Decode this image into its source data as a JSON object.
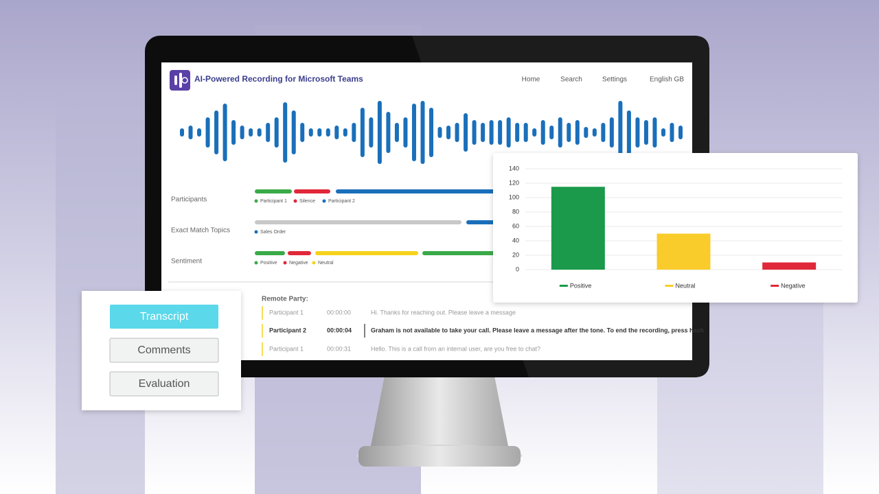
{
  "header": {
    "title": "AI-Powered Recording for Microsoft Teams",
    "nav": [
      "Home",
      "Search",
      "Settings",
      "English GB"
    ]
  },
  "timelines": [
    {
      "label": "Participants",
      "legend": [
        "Participant 1",
        "Silence",
        "Participant 2"
      ]
    },
    {
      "label": "Exact Match Topics",
      "legend": [
        "Sales Order"
      ]
    },
    {
      "label": "Sentiment",
      "legend": [
        "Positive",
        "Negative",
        "Neutral"
      ]
    }
  ],
  "transcript": {
    "heading": "Remote Party:",
    "rows": [
      {
        "speaker": "Participant 1",
        "time": "00:00:00",
        "text": "Hi. Thanks for reaching out. Please leave a message"
      },
      {
        "speaker": "Participant 2",
        "time": "00:00:04",
        "text": "Graham is not available to take your call. Please leave a message after the tone. To end the recording, press hash"
      },
      {
        "speaker": "Participant 1",
        "time": "00:00:31",
        "text": "Hello. This is a call from an internal user, are you free to chat?"
      }
    ]
  },
  "tabs": [
    "Transcript",
    "Comments",
    "Evaluation"
  ],
  "chart_data": {
    "type": "bar",
    "categories": [
      "Positive",
      "Neutral",
      "Negative"
    ],
    "values": [
      115,
      50,
      10
    ],
    "colors": [
      "#1a9a4a",
      "#f9cc2c",
      "#e0283a"
    ],
    "ylim": [
      0,
      140
    ],
    "yticks": [
      0,
      20,
      40,
      60,
      80,
      100,
      120,
      140
    ],
    "grid": true
  }
}
